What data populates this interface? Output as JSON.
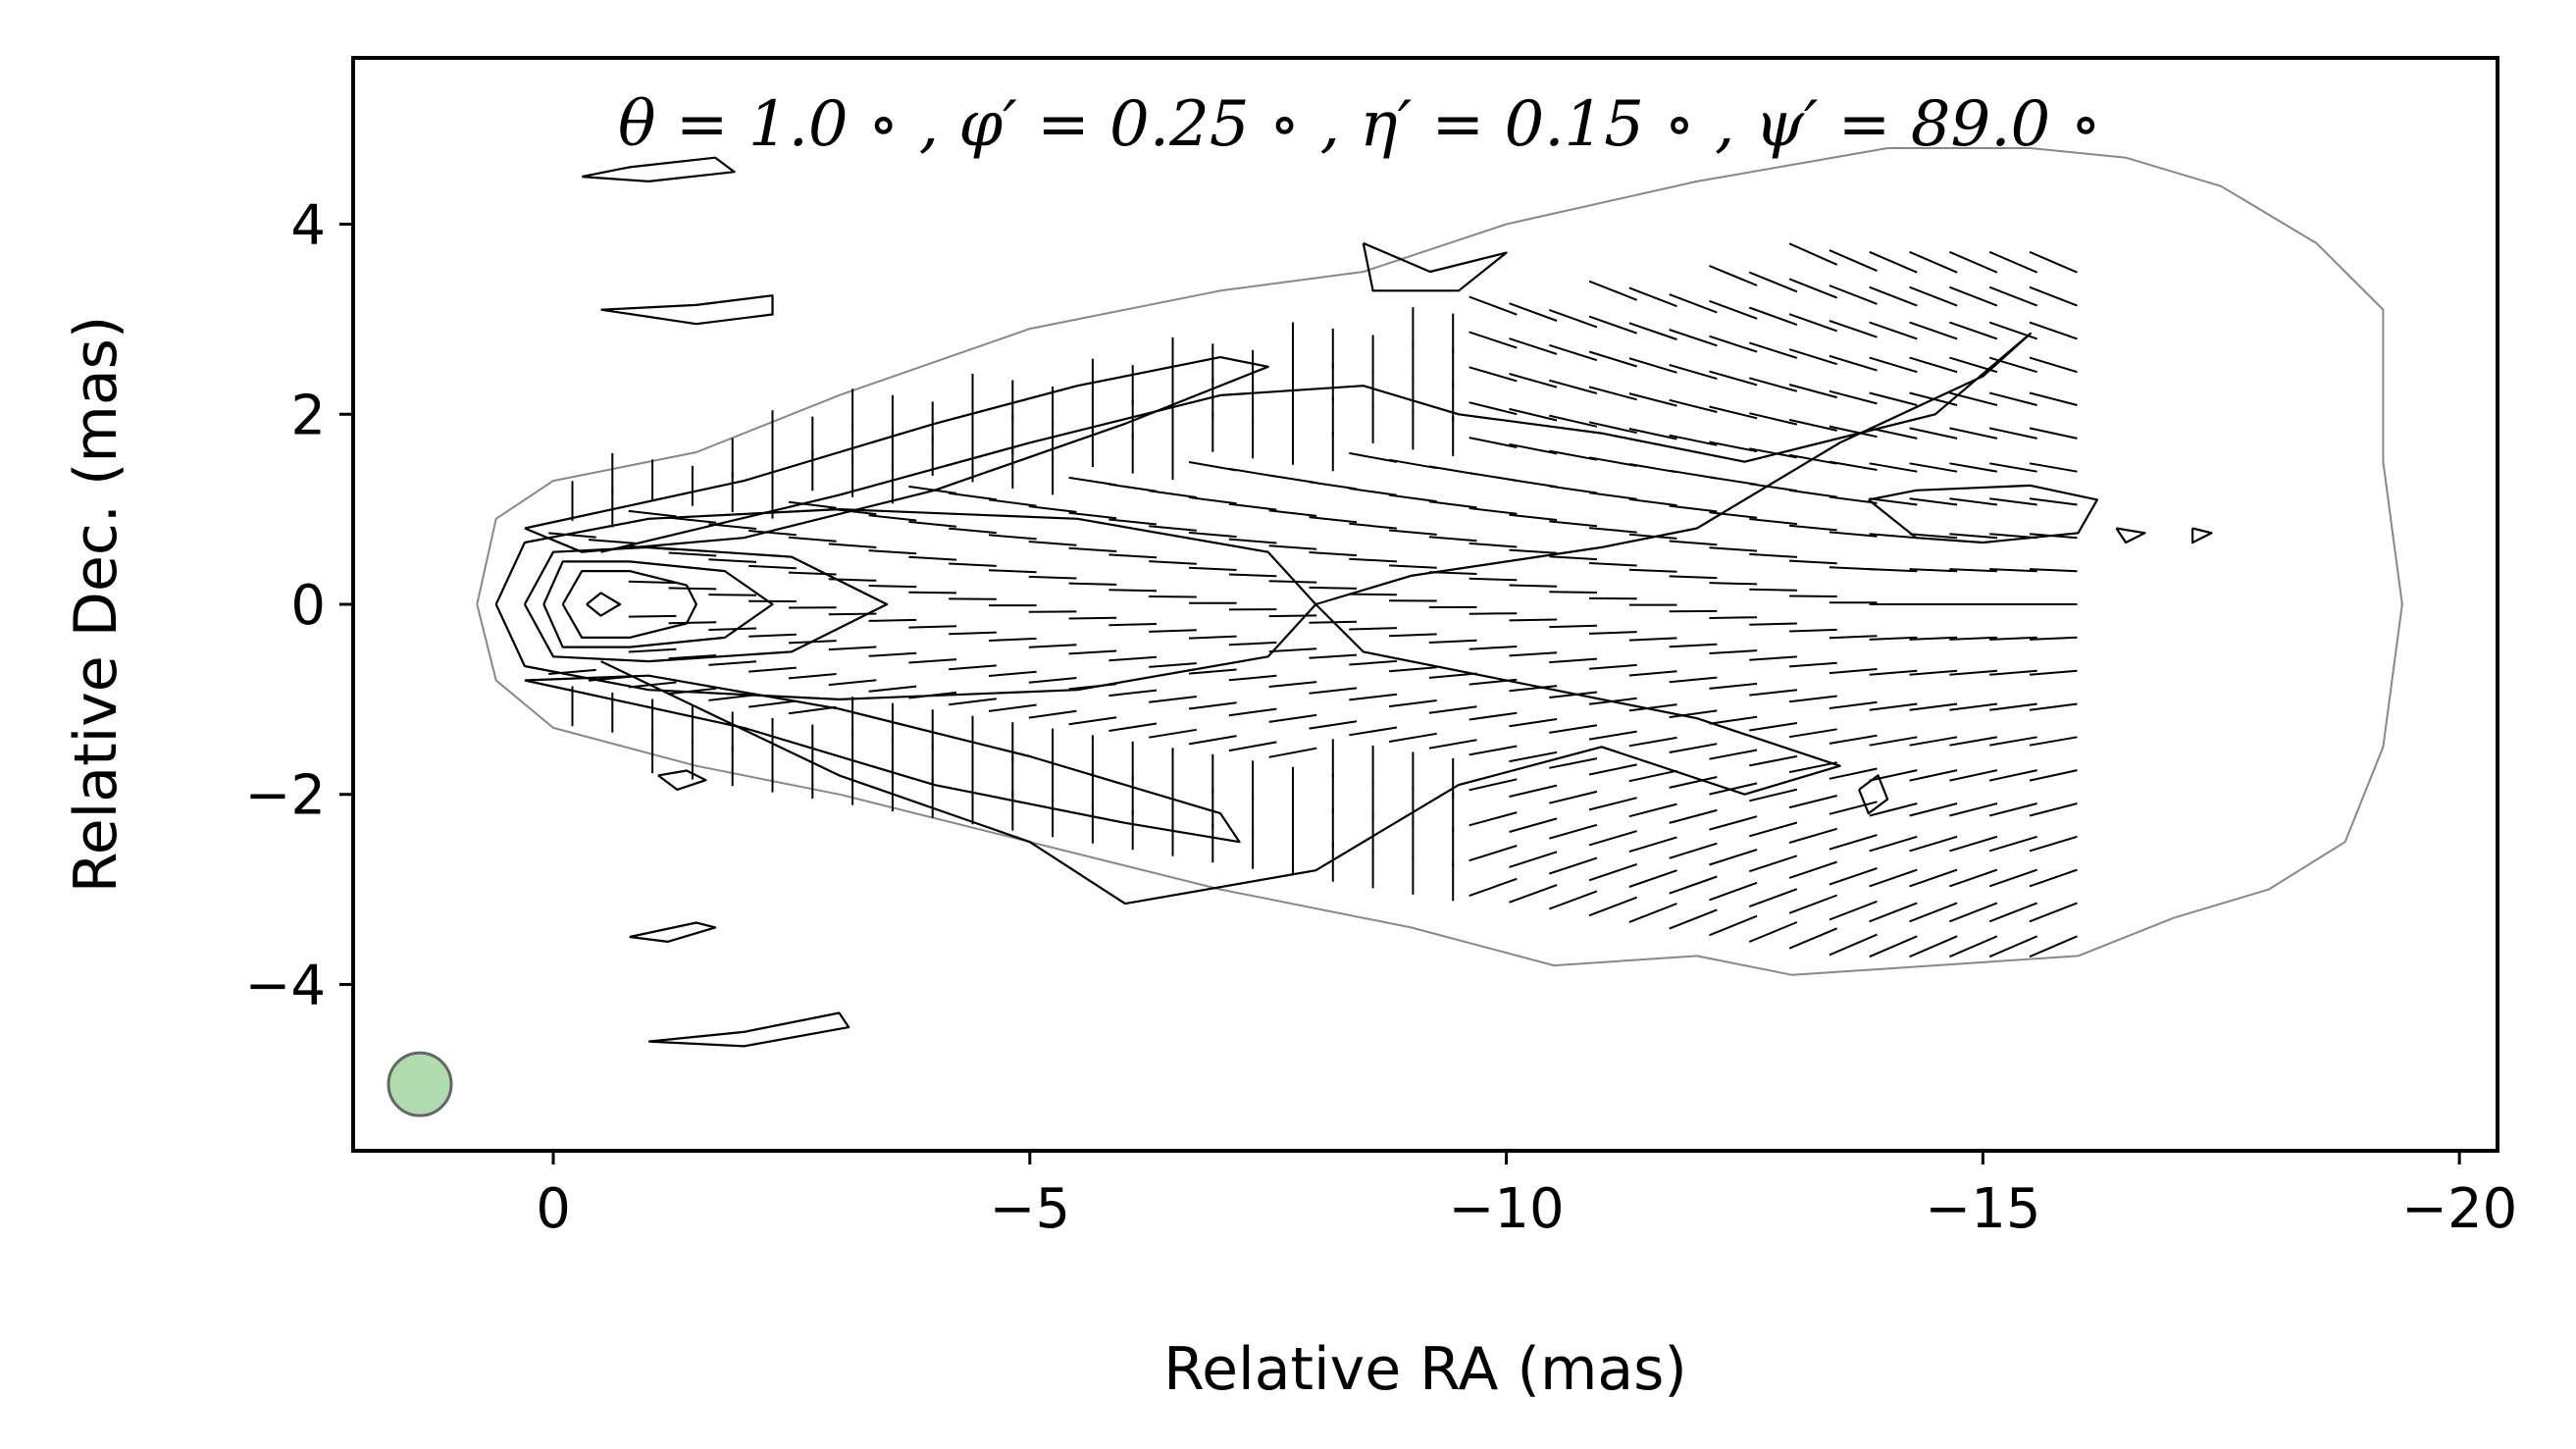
{
  "chart_data": {
    "type": "contour",
    "title": "",
    "annotation": "θ = 1.0 ∘ ,  φ′ = 0.25 ∘ ,  η′ = 0.15 ∘ ,  ψ′ = 89.0 ∘",
    "xlabel": "Relative RA (mas)",
    "ylabel": "Relative Dec. (mas)",
    "xlim": [
      2.1,
      -20.4
    ],
    "ylim": [
      -5.75,
      5.75
    ],
    "xticks": [
      {
        "value": 0,
        "label": "0"
      },
      {
        "value": -5,
        "label": "−5"
      },
      {
        "value": -10,
        "label": "−10"
      },
      {
        "value": -15,
        "label": "−15"
      },
      {
        "value": -20,
        "label": "−20"
      }
    ],
    "yticks": [
      {
        "value": 4,
        "label": "4"
      },
      {
        "value": 2,
        "label": "2"
      },
      {
        "value": 0,
        "label": "0"
      },
      {
        "value": -2,
        "label": "−2"
      },
      {
        "value": -4,
        "label": "−4"
      }
    ],
    "beam": {
      "x": 1.4,
      "y": -5.05,
      "radius": 0.33,
      "color": "#5fb85f"
    },
    "grid": false,
    "outer_contour": [
      [
        0.8,
        0.0
      ],
      [
        0.6,
        0.9
      ],
      [
        0.0,
        1.3
      ],
      [
        -1.5,
        1.6
      ],
      [
        -3.0,
        2.2
      ],
      [
        -5.0,
        2.9
      ],
      [
        -7.0,
        3.3
      ],
      [
        -8.5,
        3.5
      ],
      [
        -10.0,
        4.0
      ],
      [
        -12.0,
        4.45
      ],
      [
        -14.0,
        4.8
      ],
      [
        -15.5,
        4.8
      ],
      [
        -16.5,
        4.7
      ],
      [
        -17.5,
        4.4
      ],
      [
        -18.5,
        3.8
      ],
      [
        -19.2,
        3.1
      ],
      [
        -19.2,
        1.5
      ],
      [
        -19.4,
        0.0
      ],
      [
        -19.2,
        -1.5
      ],
      [
        -18.8,
        -2.5
      ],
      [
        -18.0,
        -3.0
      ],
      [
        -17.0,
        -3.3
      ],
      [
        -16.0,
        -3.7
      ],
      [
        -14.5,
        -3.8
      ],
      [
        -13.0,
        -3.9
      ],
      [
        -12.0,
        -3.7
      ],
      [
        -10.5,
        -3.8
      ],
      [
        -9.0,
        -3.4
      ],
      [
        -7.0,
        -3.0
      ],
      [
        -5.0,
        -2.5
      ],
      [
        -3.0,
        -2.0
      ],
      [
        -1.5,
        -1.7
      ],
      [
        0.0,
        -1.3
      ],
      [
        0.6,
        -0.8
      ],
      [
        0.8,
        0.0
      ]
    ],
    "core_contours": [
      [
        [
          0.6,
          0.0
        ],
        [
          0.3,
          0.65
        ],
        [
          -1.0,
          0.9
        ],
        [
          -3.0,
          1.0
        ],
        [
          -5.5,
          0.9
        ],
        [
          -7.5,
          0.55
        ],
        [
          -8.0,
          0.0
        ],
        [
          -7.5,
          -0.55
        ],
        [
          -5.5,
          -0.9
        ],
        [
          -3.0,
          -1.0
        ],
        [
          -1.0,
          -0.9
        ],
        [
          0.3,
          -0.65
        ],
        [
          0.6,
          0.0
        ]
      ],
      [
        [
          0.3,
          0.0
        ],
        [
          0.0,
          0.55
        ],
        [
          -1.0,
          0.6
        ],
        [
          -2.5,
          0.5
        ],
        [
          -3.5,
          0.0
        ],
        [
          -2.5,
          -0.5
        ],
        [
          -1.0,
          -0.6
        ],
        [
          0.0,
          -0.55
        ],
        [
          0.3,
          0.0
        ]
      ],
      [
        [
          0.1,
          0.0
        ],
        [
          -0.1,
          0.45
        ],
        [
          -0.8,
          0.45
        ],
        [
          -1.8,
          0.35
        ],
        [
          -2.3,
          0.0
        ],
        [
          -1.8,
          -0.35
        ],
        [
          -0.8,
          -0.45
        ],
        [
          -0.1,
          -0.45
        ],
        [
          0.1,
          0.0
        ]
      ],
      [
        [
          -0.1,
          0.0
        ],
        [
          -0.3,
          0.35
        ],
        [
          -0.8,
          0.35
        ],
        [
          -1.4,
          0.2
        ],
        [
          -1.5,
          0.0
        ],
        [
          -1.4,
          -0.2
        ],
        [
          -0.8,
          -0.35
        ],
        [
          -0.3,
          -0.35
        ],
        [
          -0.1,
          0.0
        ]
      ],
      [
        [
          -0.35,
          0.0
        ],
        [
          -0.5,
          0.12
        ],
        [
          -0.7,
          0.0
        ],
        [
          -0.5,
          -0.12
        ],
        [
          -0.35,
          0.0
        ]
      ]
    ],
    "limb_contours": [
      [
        [
          0.3,
          0.8
        ],
        [
          -2.0,
          1.3
        ],
        [
          -4.0,
          1.9
        ],
        [
          -5.5,
          2.3
        ],
        [
          -7.0,
          2.6
        ],
        [
          -7.5,
          2.5
        ],
        [
          -6.0,
          1.9
        ],
        [
          -4.0,
          1.2
        ],
        [
          -2.0,
          0.7
        ],
        [
          -0.3,
          0.55
        ],
        [
          0.3,
          0.8
        ]
      ],
      [
        [
          0.3,
          -0.8
        ],
        [
          -2.0,
          -1.3
        ],
        [
          -4.0,
          -1.9
        ],
        [
          -6.0,
          -2.3
        ],
        [
          -7.2,
          -2.5
        ],
        [
          -7.0,
          -2.2
        ],
        [
          -5.0,
          -1.6
        ],
        [
          -3.0,
          -1.1
        ],
        [
          -1.0,
          -0.75
        ],
        [
          0.3,
          -0.8
        ]
      ]
    ],
    "jet_contours": [
      [
        [
          -0.5,
          0.55
        ],
        [
          -3.0,
          1.15
        ],
        [
          -5.0,
          1.7
        ],
        [
          -7.0,
          2.2
        ],
        [
          -8.5,
          2.3
        ],
        [
          -9.5,
          2.0
        ],
        [
          -11.0,
          1.8
        ],
        [
          -12.5,
          1.5
        ],
        [
          -14.5,
          2.0
        ],
        [
          -15.5,
          2.85
        ],
        [
          -15.0,
          2.4
        ],
        [
          -13.5,
          1.7
        ],
        [
          -12.0,
          0.8
        ],
        [
          -11.0,
          0.6
        ],
        [
          -9.0,
          0.3
        ],
        [
          -8.0,
          0.0
        ],
        [
          -8.5,
          -0.5
        ],
        [
          -10.5,
          -0.9
        ],
        [
          -12.0,
          -1.2
        ],
        [
          -13.5,
          -1.7
        ],
        [
          -12.5,
          -2.0
        ],
        [
          -11.0,
          -1.5
        ],
        [
          -9.5,
          -1.9
        ],
        [
          -8.0,
          -2.8
        ],
        [
          -6.0,
          -3.15
        ],
        [
          -5.0,
          -2.5
        ],
        [
          -3.0,
          -1.8
        ],
        [
          -0.5,
          -0.6
        ]
      ],
      [
        [
          -8.5,
          3.8
        ],
        [
          -9.2,
          3.5
        ],
        [
          -10.0,
          3.7
        ],
        [
          -9.5,
          3.3
        ],
        [
          -8.6,
          3.3
        ],
        [
          -8.5,
          3.8
        ]
      ],
      [
        [
          -13.8,
          1.1
        ],
        [
          -14.3,
          0.7
        ],
        [
          -15.0,
          0.65
        ],
        [
          -16.0,
          0.75
        ],
        [
          -16.2,
          1.1
        ],
        [
          -15.5,
          1.25
        ],
        [
          -14.3,
          1.2
        ],
        [
          -13.8,
          1.1
        ]
      ]
    ],
    "islands": [
      [
        [
          -0.3,
          4.5
        ],
        [
          -0.8,
          4.6
        ],
        [
          -1.7,
          4.7
        ],
        [
          -1.9,
          4.55
        ],
        [
          -1.0,
          4.45
        ],
        [
          -0.3,
          4.5
        ]
      ],
      [
        [
          -0.5,
          3.1
        ],
        [
          -1.5,
          3.15
        ],
        [
          -2.3,
          3.25
        ],
        [
          -2.3,
          3.05
        ],
        [
          -1.5,
          2.95
        ],
        [
          -0.5,
          3.1
        ]
      ],
      [
        [
          -1.0,
          -4.6
        ],
        [
          -2.0,
          -4.5
        ],
        [
          -3.0,
          -4.3
        ],
        [
          -3.1,
          -4.45
        ],
        [
          -2.0,
          -4.65
        ],
        [
          -1.0,
          -4.6
        ]
      ],
      [
        [
          -0.8,
          -3.5
        ],
        [
          -1.5,
          -3.35
        ],
        [
          -1.7,
          -3.4
        ],
        [
          -1.2,
          -3.55
        ],
        [
          -0.8,
          -3.5
        ]
      ],
      [
        [
          -1.1,
          -1.8
        ],
        [
          -1.4,
          -1.75
        ],
        [
          -1.6,
          -1.85
        ],
        [
          -1.3,
          -1.95
        ],
        [
          -1.1,
          -1.8
        ]
      ],
      [
        [
          -13.7,
          -1.95
        ],
        [
          -13.9,
          -1.8
        ],
        [
          -14.0,
          -2.05
        ],
        [
          -13.8,
          -2.2
        ],
        [
          -13.7,
          -1.95
        ]
      ],
      [
        [
          -16.4,
          0.8
        ],
        [
          -16.7,
          0.75
        ],
        [
          -16.5,
          0.65
        ],
        [
          -16.4,
          0.8
        ]
      ],
      [
        [
          -17.2,
          0.8
        ],
        [
          -17.4,
          0.75
        ],
        [
          -17.2,
          0.65
        ],
        [
          -17.2,
          0.8
        ]
      ]
    ],
    "evpa_field": {
      "limbs": "perpendicular to jet axis",
      "spine": "parallel to jet axis"
    }
  }
}
